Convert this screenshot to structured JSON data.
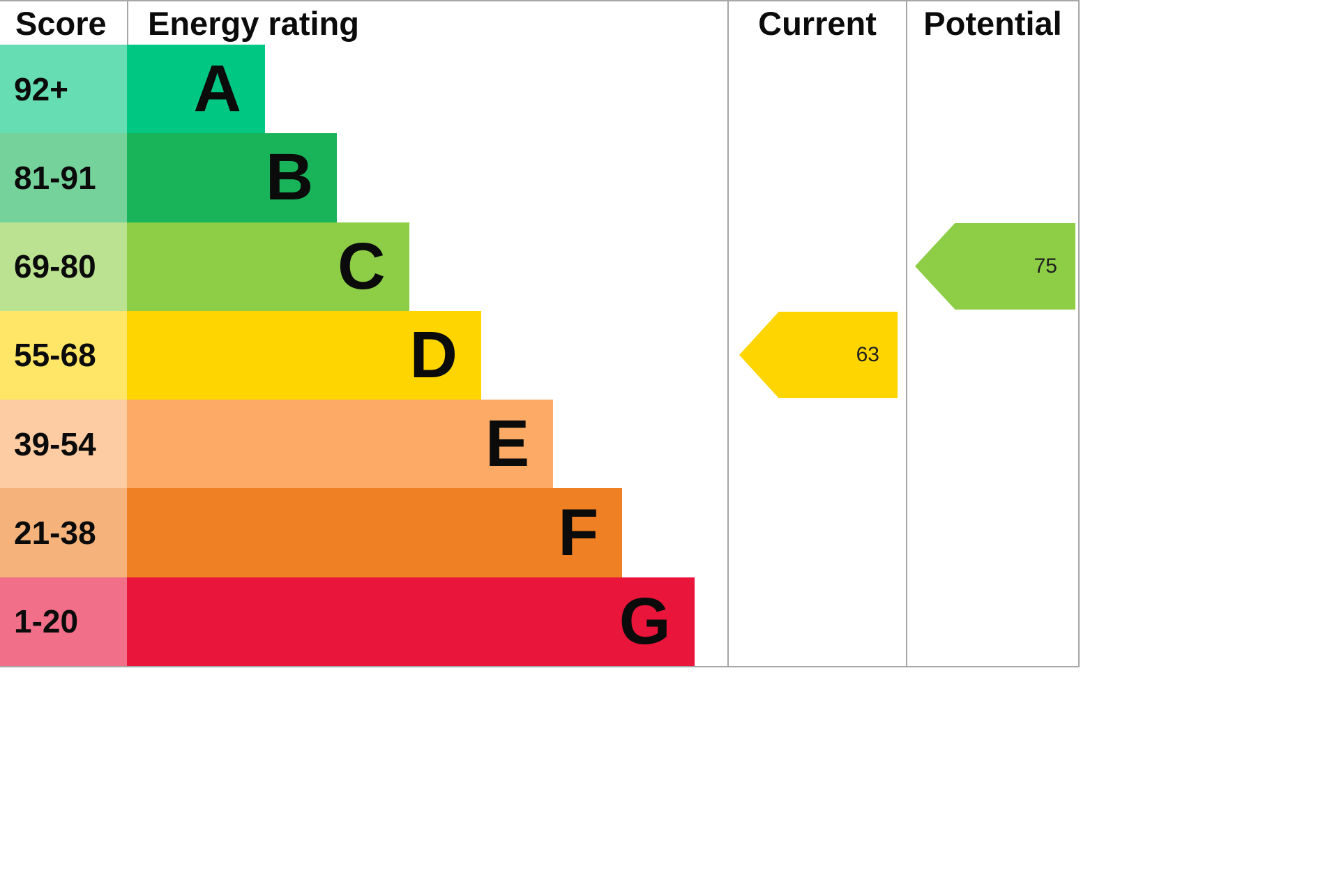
{
  "header": {
    "score": "Score",
    "rating": "Energy rating",
    "current": "Current",
    "potential": "Potential"
  },
  "bands": [
    {
      "letter": "A",
      "score": "92+",
      "color": "#00c781",
      "tint": "#66ddb3",
      "width_pct": 23
    },
    {
      "letter": "B",
      "score": "81-91",
      "color": "#19b459",
      "tint": "#75d29b",
      "width_pct": 35
    },
    {
      "letter": "C",
      "score": "69-80",
      "color": "#8dce46",
      "tint": "#bbe290",
      "width_pct": 47
    },
    {
      "letter": "D",
      "score": "55-68",
      "color": "#ffd500",
      "tint": "#ffe666",
      "width_pct": 59
    },
    {
      "letter": "E",
      "score": "39-54",
      "color": "#fcaa65",
      "tint": "#fdcca3",
      "width_pct": 71
    },
    {
      "letter": "F",
      "score": "21-38",
      "color": "#ef8023",
      "tint": "#f5b37b",
      "width_pct": 82.5
    },
    {
      "letter": "G",
      "score": "1-20",
      "color": "#e9153b",
      "tint": "#f16f89",
      "width_pct": 94.5
    }
  ],
  "current": {
    "label": "63",
    "band_index": 3,
    "color": "#ffd500"
  },
  "potential": {
    "label": "75",
    "band_index": 2,
    "color": "#8dce46"
  },
  "chart_data": {
    "type": "bar",
    "title": "Energy rating",
    "categories": [
      "A",
      "B",
      "C",
      "D",
      "E",
      "F",
      "G"
    ],
    "score_ranges": [
      "92+",
      "81-91",
      "69-80",
      "55-68",
      "39-54",
      "21-38",
      "1-20"
    ],
    "bar_lengths_pct": [
      23,
      35,
      47,
      59,
      71,
      82.5,
      94.5
    ],
    "band_colors": [
      "#00c781",
      "#19b459",
      "#8dce46",
      "#ffd500",
      "#fcaa65",
      "#ef8023",
      "#e9153b"
    ],
    "markers": [
      {
        "name": "Current",
        "value": 63,
        "band": "D"
      },
      {
        "name": "Potential",
        "value": 75,
        "band": "C"
      }
    ],
    "legend_position": "none",
    "grid": false
  }
}
